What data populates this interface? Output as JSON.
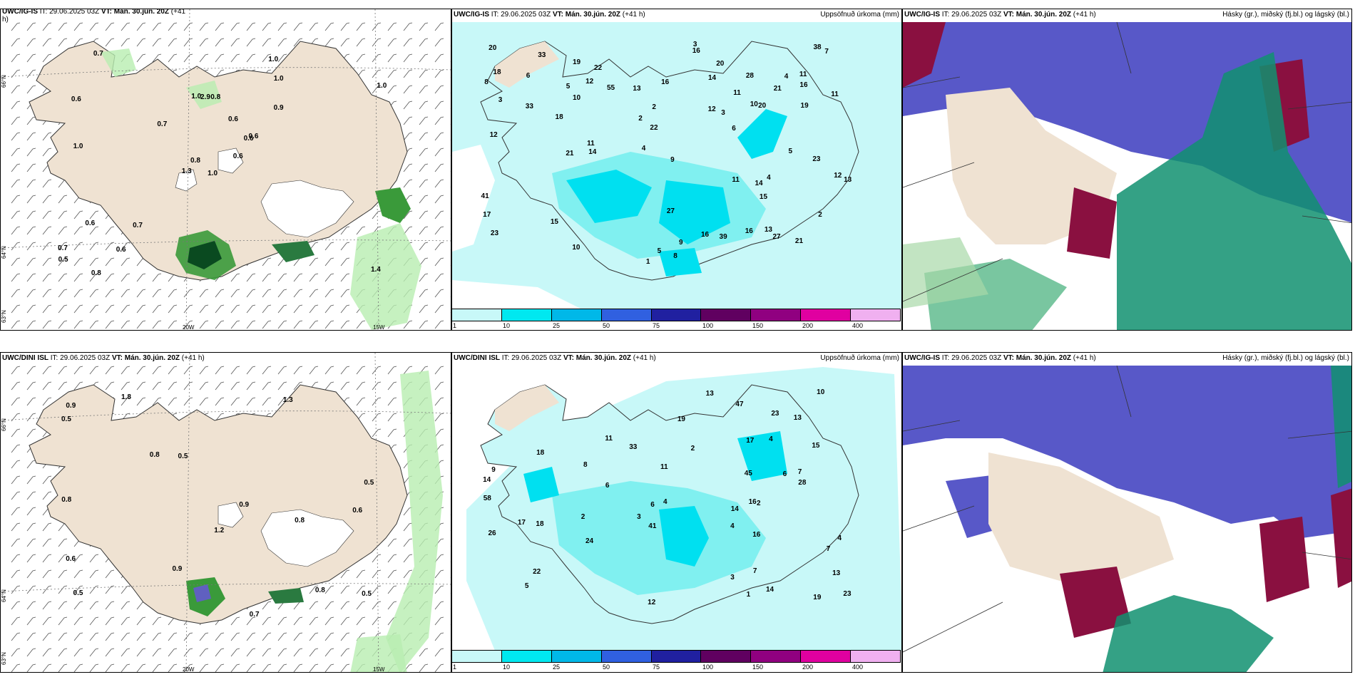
{
  "panels": {
    "top_left": {
      "model": "UWC/IG-IS",
      "it": "IT: 29.06.2025 03Z",
      "vt": "VT: Mán. 30.jún. 20Z",
      "lead": "(+41",
      "lead2": "h)"
    },
    "top_mid": {
      "model": "UWC/IG-IS",
      "it": "IT: 29.06.2025 03Z",
      "vt": "VT: Mán. 30.jún. 20Z",
      "lead": "(+41 h)",
      "right": "Uppsöfnuð úrkoma (mm)"
    },
    "top_right": {
      "model": "UWC/IG-IS",
      "it": "IT: 29.06.2025 03Z",
      "vt": "VT: Mán. 30.jún. 20Z",
      "lead": "(+41 h)",
      "right": "Hásky (gr.), miðský (fj.bl.) og lágský (bl.)"
    },
    "bot_left": {
      "model": "UWC/DINI ISL",
      "it": "IT: 29.06.2025 03Z",
      "vt": "VT: Mán. 30.jún. 20Z",
      "lead": "(+41 h)"
    },
    "bot_mid": {
      "model": "UWC/DINI ISL",
      "it": "IT: 29.06.2025 03Z",
      "vt": "VT: Mán. 30.jún. 20Z",
      "lead": "(+41 h)",
      "right": "Uppsöfnuð úrkoma (mm)"
    },
    "bot_right": {
      "model": "UWC/IG-IS",
      "it": "IT: 29.06.2025 03Z",
      "vt": "VT: Mán. 30.jún. 20Z",
      "lead": "(+41 h)",
      "right": "Hásky (gr.), miðský (fj.bl.) og lágský (bl.)"
    }
  },
  "grid_labels": {
    "lat66": "66°N",
    "lat64": "64°N",
    "lat63": "63°N",
    "lon20": "20W",
    "lon15": "15W"
  },
  "colorbar": {
    "colors": [
      "#c8f8f8",
      "#00e8f0",
      "#00b8e8",
      "#3060e0",
      "#2020a0",
      "#600060",
      "#900080",
      "#e000a0",
      "#f0b0f0"
    ],
    "labels": [
      "1",
      "10",
      "25",
      "50",
      "75",
      "100",
      "150",
      "200",
      "400"
    ]
  },
  "colors": {
    "land": "#efe2d2",
    "precip_light": "#c8f8f8",
    "precip_mid": "#80f0f0",
    "precip_high": "#00e0f0",
    "cloud_low": "#5858c8",
    "cloud_mid": "#109070",
    "cloud_high": "#8a1040"
  },
  "top_left_values": [
    "1.0",
    "0.6",
    "0.8",
    "0.7",
    "0.6",
    "0.7",
    "1.0",
    "0.8",
    "1.0",
    "0.6",
    "0.7",
    "1.4",
    "1.0",
    "1.0",
    "1.3",
    "0.9",
    "0.8",
    "1.0",
    "0.6",
    "0.6",
    "0.7",
    "0.5",
    "0.6",
    "2.9",
    "0.6"
  ],
  "bot_left_values": [
    "0.8",
    "0.6",
    "0.5",
    "1.8",
    "0.5",
    "0.8",
    "0.6",
    "1.3",
    "0.8",
    "0.7",
    "0.5",
    "0.8",
    "0.9",
    "0.5",
    "0.9",
    "0.5",
    "1.2",
    "0.9"
  ],
  "top_mid_values": [
    "3",
    "10",
    "6",
    "5",
    "4",
    "1",
    "11",
    "14",
    "11",
    "13",
    "12",
    "12",
    "10",
    "15",
    "12",
    "10",
    "11",
    "13",
    "21",
    "16",
    "27",
    "23",
    "22",
    "27",
    "28",
    "18",
    "16",
    "20",
    "33",
    "21",
    "41",
    "39",
    "38",
    "33",
    "18",
    "19",
    "55",
    "14",
    "16",
    "17",
    "20",
    "5",
    "2",
    "13",
    "9",
    "11",
    "8",
    "5",
    "2",
    "4",
    "2",
    "3",
    "4",
    "14",
    "16",
    "22",
    "23",
    "15",
    "16",
    "12",
    "21",
    "20",
    "19",
    "7",
    "8",
    "6",
    "9",
    "3",
    "11"
  ],
  "bot_mid_values": [
    "4",
    "4",
    "6",
    "7",
    "3",
    "4",
    "7",
    "11",
    "13",
    "14",
    "16",
    "14",
    "26",
    "16",
    "24",
    "19",
    "13",
    "17",
    "23",
    "33",
    "41",
    "58",
    "45",
    "47",
    "28",
    "22",
    "18",
    "17",
    "23",
    "18",
    "15",
    "13",
    "9",
    "7",
    "6",
    "5",
    "2",
    "4",
    "2",
    "1",
    "3",
    "2",
    "19",
    "12",
    "14",
    "11",
    "10",
    "8",
    "6"
  ]
}
